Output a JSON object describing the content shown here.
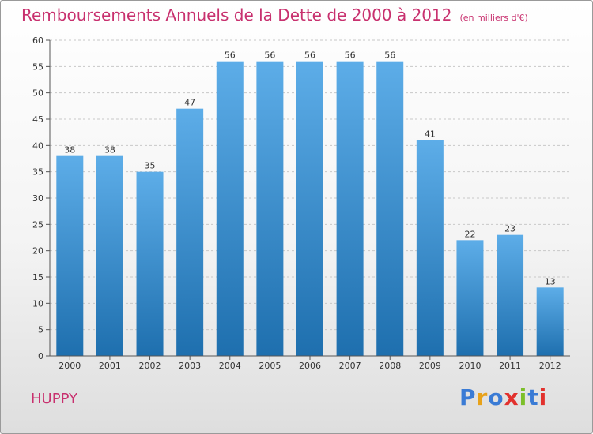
{
  "header": {
    "title": "Remboursements Annuels de la Dette de 2000 à 2012",
    "subtitle": "(en milliers d'€)"
  },
  "footer": {
    "commune": "HUPPY",
    "logo_text": "Proxiti",
    "logo_colors": [
      "#3a7bd5",
      "#e8a21a",
      "#3a7bd5",
      "#e2312d",
      "#7cbf2a",
      "#3a7bd5",
      "#e2312d"
    ]
  },
  "colors": {
    "bar_top": "#5dade8",
    "bar_bottom": "#1e6fae",
    "title": "#c8306e",
    "grid": "#c8c8c8"
  },
  "chart_data": {
    "type": "bar",
    "title": "Remboursements Annuels de la Dette de 2000 à 2012",
    "subtitle": "(en milliers d'€)",
    "categories": [
      "2000",
      "2001",
      "2002",
      "2003",
      "2004",
      "2005",
      "2006",
      "2007",
      "2008",
      "2009",
      "2010",
      "2011",
      "2012"
    ],
    "values": [
      38,
      38,
      35,
      47,
      56,
      56,
      56,
      56,
      56,
      41,
      22,
      23,
      13
    ],
    "ylim": [
      0,
      60
    ],
    "yticks": [
      0,
      5,
      10,
      15,
      20,
      25,
      30,
      35,
      40,
      45,
      50,
      55,
      60
    ],
    "grid": true,
    "data_labels": true
  }
}
